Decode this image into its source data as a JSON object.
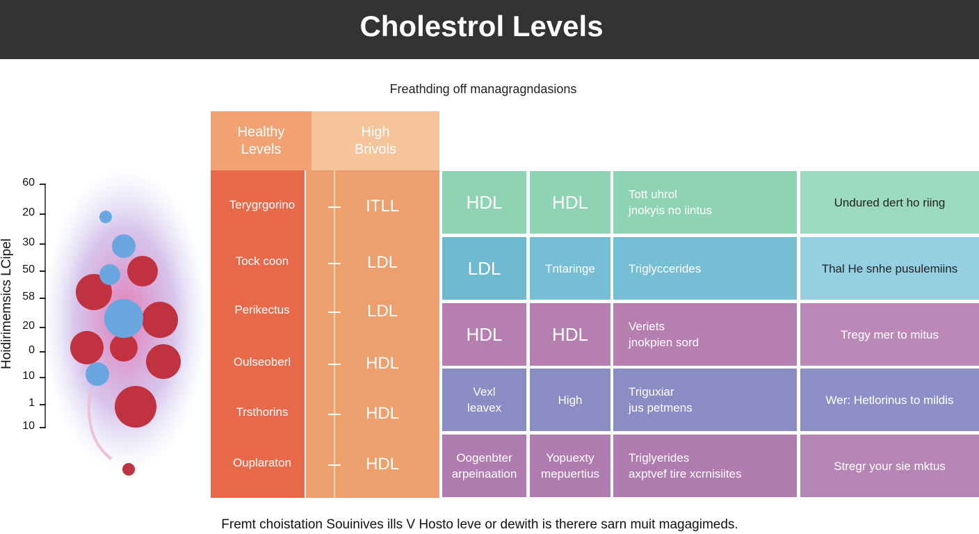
{
  "title": "Cholestrol Levels",
  "subtitle": "Freathding off managragndasions",
  "axis_label": "Hoidirimemsics LCipel",
  "axis_ticks": [
    "60",
    "20",
    "30",
    "50",
    "58",
    "20",
    "0",
    "10",
    "1",
    "10"
  ],
  "left_headers": [
    [
      "Healthy",
      "Levels"
    ],
    [
      "High",
      "Brivols"
    ]
  ],
  "left_rows": [
    {
      "label": "Terygrgorino",
      "value": "ITLL"
    },
    {
      "label": "Tock coon",
      "value": "LDL"
    },
    {
      "label": "Perikectus",
      "value": "LDL"
    },
    {
      "label": "Oulseoberl",
      "value": "HDL"
    },
    {
      "label": "Trsthorins",
      "value": "HDL"
    },
    {
      "label": "Ouplaraton",
      "value": "HDL"
    }
  ],
  "grid_rows": [
    [
      [
        "HDL"
      ],
      [
        "HDL"
      ],
      [
        "Tott uhrol",
        "jnokyis no iintus"
      ],
      [
        "Undured dert ho riing"
      ]
    ],
    [
      [
        "LDL"
      ],
      [
        "Tntaringe"
      ],
      [
        "Triglyccerides"
      ],
      [
        "Thal He snhe pusulemiins"
      ]
    ],
    [
      [
        "HDL"
      ],
      [
        "HDL"
      ],
      [
        "Veriets",
        "jnokpien sord"
      ],
      [
        "Tregy mer to mitus"
      ]
    ],
    [
      [
        "Vexl",
        "leavex"
      ],
      [
        "High"
      ],
      [
        "Triguxiar",
        "jus petmens"
      ],
      [
        "Wer: Hetlorinus to mildis"
      ]
    ],
    [
      [
        "Oogenbter",
        "arpeinaation"
      ],
      [
        "Yopuexty",
        "mepuertius"
      ],
      [
        "Triglyerides",
        "axptvef tire xcrnisiites"
      ],
      [
        "Stregr your sie mktus"
      ]
    ]
  ],
  "footer": "Fremt choistation Souinives ills V Hosto leve or dewith is therere sarn muit magagimeds."
}
